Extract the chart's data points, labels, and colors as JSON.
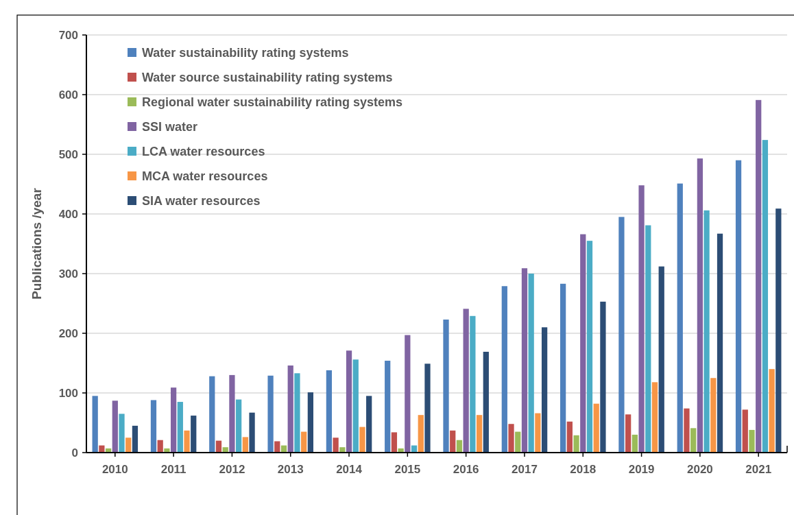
{
  "chart_data": {
    "type": "bar",
    "ylabel": "Publications /year",
    "categories": [
      "2010",
      "2011",
      "2012",
      "2013",
      "2014",
      "2015",
      "2016",
      "2017",
      "2018",
      "2019",
      "2020",
      "2021"
    ],
    "series": [
      {
        "name": "Water sustainability rating systems",
        "color": "#4f81bd",
        "values": [
          95,
          88,
          128,
          129,
          138,
          154,
          223,
          279,
          283,
          395,
          451,
          490
        ]
      },
      {
        "name": "Water source sustainability rating systems",
        "color": "#c0504d",
        "values": [
          12,
          21,
          20,
          19,
          25,
          34,
          37,
          48,
          52,
          64,
          74,
          72
        ]
      },
      {
        "name": "Regional water sustainability rating systems",
        "color": "#9bbb59",
        "values": [
          7,
          7,
          9,
          12,
          9,
          7,
          21,
          35,
          29,
          30,
          41,
          38
        ]
      },
      {
        "name": "SSI water",
        "color": "#8064a2",
        "values": [
          87,
          109,
          130,
          146,
          171,
          197,
          241,
          309,
          366,
          448,
          493,
          591
        ]
      },
      {
        "name": "LCA water resources",
        "color": "#4bacc6",
        "values": [
          65,
          85,
          89,
          133,
          156,
          12,
          229,
          300,
          355,
          381,
          406,
          524
        ]
      },
      {
        "name": "MCA water resources",
        "color": "#f79646",
        "values": [
          25,
          37,
          26,
          35,
          43,
          63,
          63,
          66,
          82,
          118,
          125,
          140
        ]
      },
      {
        "name": "SIA water resources",
        "color": "#2c4d75",
        "values": [
          45,
          62,
          67,
          101,
          95,
          149,
          169,
          210,
          253,
          312,
          367,
          409
        ]
      }
    ],
    "ylim": [
      0,
      700
    ],
    "yticks": [
      0,
      100,
      200,
      300,
      400,
      500,
      600,
      700
    ],
    "grid": "y",
    "legend": "top left"
  }
}
